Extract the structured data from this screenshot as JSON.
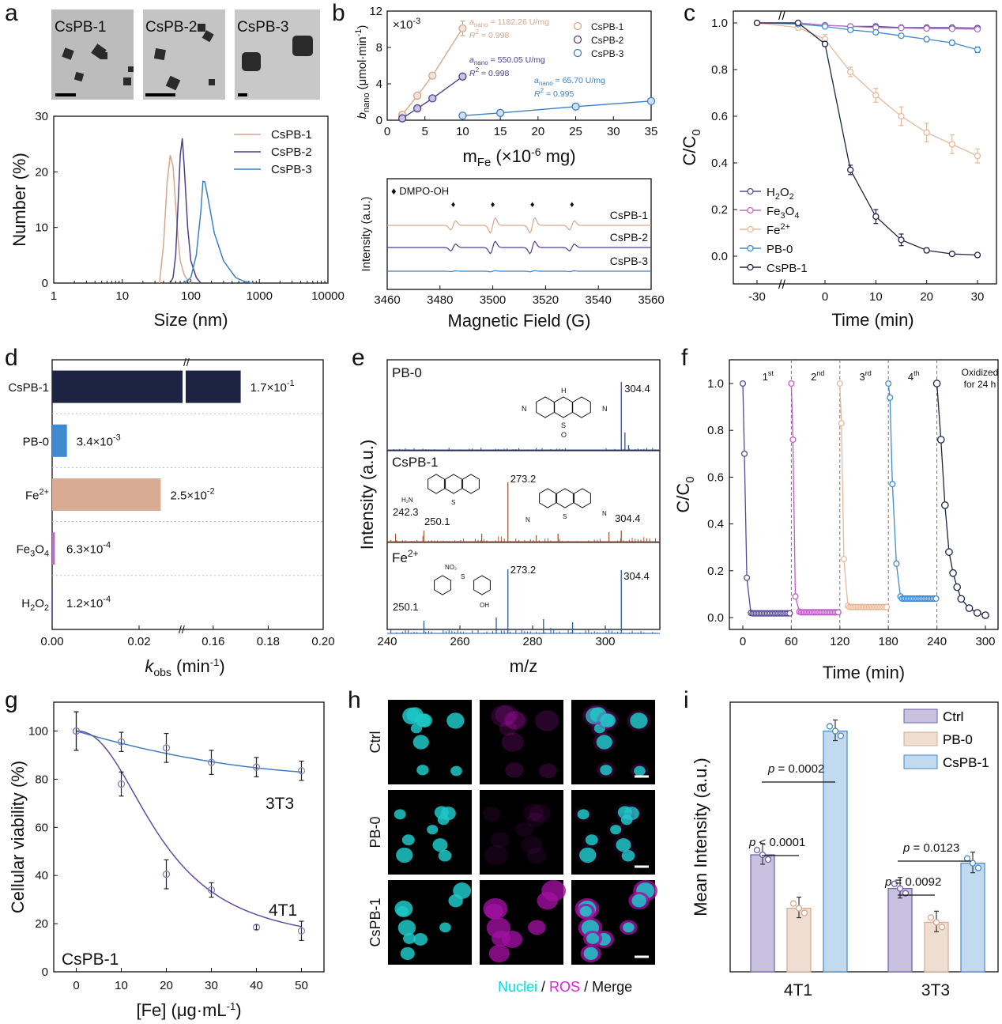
{
  "panels": {
    "a": "a",
    "b": "b",
    "c": "c",
    "d": "d",
    "e": "e",
    "f": "f",
    "g": "g",
    "h": "h",
    "i": "i"
  },
  "colors": {
    "cspb1": "#d7a68c",
    "cspb2": "#4c3f90",
    "cspb3": "#3c7fc2",
    "h2o2": "#54489a",
    "fe3o4": "#b86fc0",
    "fe2": "#e8b89a",
    "pb0": "#3f8ad0",
    "cspb1dark": "#1d2443",
    "magenta": "#e020e0",
    "cyan": "#00e0e0"
  },
  "chart_data": [
    {
      "id": "a-images",
      "type": "image-panel",
      "labels": [
        "CsPB-1",
        "CsPB-2",
        "CsPB-3"
      ]
    },
    {
      "id": "a",
      "type": "line",
      "title": "",
      "xlabel": "Size (nm)",
      "ylabel": "Number (%)",
      "xscale": "log",
      "xlim": [
        1,
        10000
      ],
      "ylim": [
        0,
        30
      ],
      "xticks": [
        1,
        10,
        100,
        1000,
        10000
      ],
      "xtick_labels": [
        "1",
        "10",
        "100",
        "1000",
        "10000"
      ],
      "yticks": [
        0,
        10,
        20,
        30
      ],
      "series": [
        {
          "name": "CsPB-1",
          "x": [
            35,
            40,
            45,
            50,
            55,
            60,
            65,
            70,
            80,
            90,
            100
          ],
          "y": [
            0,
            7,
            18,
            23,
            21,
            14,
            8,
            4,
            1.5,
            0.5,
            0
          ]
        },
        {
          "name": "CsPB-2",
          "x": [
            50,
            55,
            60,
            65,
            70,
            75,
            80,
            90,
            100,
            120,
            140
          ],
          "y": [
            0,
            1,
            5,
            14,
            23,
            26,
            21,
            10,
            4,
            1,
            0
          ]
        },
        {
          "name": "CsPB-3",
          "x": [
            80,
            100,
            120,
            140,
            150,
            160,
            180,
            220,
            300,
            450,
            600,
            800
          ],
          "y": [
            0,
            1,
            5,
            13,
            18.3,
            18.2,
            15,
            9,
            4,
            1,
            0.3,
            0
          ]
        }
      ]
    },
    {
      "id": "b-top",
      "type": "scatter",
      "xlabel_main": "m",
      "xlabel_sub": "Fe",
      "xlabel_tail": " (×10",
      "xlabel_sup": "-6",
      "xlabel_end": " mg)",
      "ylabel_main": "b",
      "ylabel_sub": "nano",
      "ylabel_tail": " (μmol·min",
      "ylabel_sup": "-1",
      "ylabel_end": ")",
      "multiplier": "×10",
      "multiplier_sup": "-3",
      "xlim": [
        0,
        35
      ],
      "ylim": [
        0,
        12
      ],
      "xticks": [
        0,
        5,
        10,
        15,
        20,
        25,
        30,
        35
      ],
      "yticks": [
        0,
        4,
        8,
        12
      ],
      "series": [
        {
          "name": "CsPB-1",
          "x": [
            2,
            4,
            6,
            10
          ],
          "y": [
            0.6,
            2.7,
            4.9,
            10.1
          ],
          "err": [
            0.2,
            0.3,
            0.3,
            0.8
          ],
          "fit_slope": "a_nano = 1182.26 U/mg",
          "fit_r2": "R² = 0.998"
        },
        {
          "name": "CsPB-2",
          "x": [
            2,
            4,
            6,
            10
          ],
          "y": [
            0.2,
            1.3,
            2.4,
            4.8
          ],
          "err": [
            0.1,
            0.1,
            0.1,
            0.2
          ],
          "fit_slope": "a_nano = 550.05 U/mg",
          "fit_r2": "R² = 0.998"
        },
        {
          "name": "CsPB-3",
          "x": [
            10,
            15,
            25,
            35
          ],
          "y": [
            0.5,
            0.8,
            1.5,
            2.1
          ],
          "err": [
            0.1,
            0.1,
            0.1,
            0.15
          ],
          "fit_slope": "a_nano = 65.70 U/mg",
          "fit_r2": "R² = 0.995"
        }
      ],
      "annotations": {
        "cspb1_a": "a",
        "cspb1_a_sub": "nano",
        "cspb1_a_val": " = 1182.26 U/mg",
        "cspb1_r": "R",
        "cspb1_r_val": " = 0.998",
        "cspb2_a_val": " = 550.05 U/mg",
        "cspb2_r_val": " = 0.998",
        "cspb3_a_val": " = 65.70 U/mg",
        "cspb3_r_val": " = 0.995",
        "r_sup": "2"
      }
    },
    {
      "id": "b-bottom",
      "type": "line",
      "xlabel": "Magnetic Field (G)",
      "ylabel": "Intensity (a.u.)",
      "xlim": [
        3460,
        3560
      ],
      "xticks": [
        3460,
        3480,
        3500,
        3520,
        3540,
        3560
      ],
      "legend": "DMPO-OH",
      "marker": "♦",
      "peaks": [
        3485,
        3500,
        3515,
        3530
      ],
      "series": [
        {
          "name": "CsPB-1",
          "amplitudes": [
            0.6,
            1.0,
            1.0,
            0.6
          ]
        },
        {
          "name": "CsPB-2",
          "amplitudes": [
            0.45,
            0.8,
            0.8,
            0.45
          ]
        },
        {
          "name": "CsPB-3",
          "amplitudes": [
            0.05,
            0.08,
            0.08,
            0.05
          ]
        }
      ]
    },
    {
      "id": "c",
      "type": "line",
      "xlabel": "Time (min)",
      "ylabel": "C/C",
      "ylabel_sub": "0",
      "xticks": [
        -30,
        0,
        10,
        20,
        30
      ],
      "yticks": [
        0.0,
        0.2,
        0.4,
        0.6,
        0.8,
        1.0
      ],
      "ylim": [
        0,
        1.0
      ],
      "x": [
        -30,
        -5,
        0,
        5,
        10,
        15,
        20,
        25,
        30
      ],
      "series": [
        {
          "name": "H2O2",
          "label": "H",
          "sub1": "2",
          "mid": "O",
          "sub2": "2",
          "y": [
            1.0,
            1.0,
            0.99,
            0.985,
            0.985,
            0.98,
            0.98,
            0.98,
            0.978
          ]
        },
        {
          "name": "Fe3O4",
          "label": "Fe",
          "sub1": "3",
          "mid": "O",
          "sub2": "4",
          "y": [
            1.0,
            1.0,
            0.99,
            0.985,
            0.98,
            0.978,
            0.976,
            0.975,
            0.973
          ]
        },
        {
          "name": "Fe2+",
          "label": "Fe",
          "sup": "2+",
          "y": [
            1.0,
            0.98,
            0.93,
            0.79,
            0.69,
            0.6,
            0.53,
            0.48,
            0.43
          ],
          "err": [
            0,
            0.01,
            0.02,
            0.02,
            0.03,
            0.04,
            0.04,
            0.04,
            0.03
          ]
        },
        {
          "name": "PB-0",
          "label": "PB-0",
          "y": [
            1.0,
            0.995,
            0.985,
            0.97,
            0.96,
            0.945,
            0.93,
            0.915,
            0.885
          ],
          "err": [
            0,
            0.005,
            0.005,
            0.008,
            0.008,
            0.008,
            0.008,
            0.01,
            0.012
          ]
        },
        {
          "name": "CsPB-1",
          "label": "CsPB-1",
          "y": [
            1.0,
            1.0,
            0.91,
            0.37,
            0.17,
            0.07,
            0.025,
            0.01,
            0.005
          ],
          "err": [
            0,
            0,
            0.01,
            0.02,
            0.03,
            0.025,
            0.01,
            0.005,
            0.003
          ]
        }
      ]
    },
    {
      "id": "d",
      "type": "bar",
      "orientation": "horizontal",
      "xlabel": "k",
      "xlabel_sub": "obs",
      "xlabel_tail": " (min",
      "xlabel_sup": "-1",
      "xlabel_end": ")",
      "xticks_left": [
        "0.00",
        "0.02"
      ],
      "xticks_right": [
        "0.16",
        "0.18",
        "0.20"
      ],
      "categories": [
        "CsPB-1",
        "PB-0",
        "Fe2+",
        "Fe3O4",
        "H2O2"
      ],
      "values": [
        0.17,
        0.0034,
        0.025,
        0.00063,
        0.00012
      ],
      "value_labels": [
        "1.7×10",
        "3.4×10",
        "2.5×10",
        "6.3×10",
        "1.2×10"
      ],
      "value_exps": [
        "-1",
        "-3",
        "-2",
        "-4",
        "-4"
      ],
      "cat_labels": {
        "c1": "CsPB-1",
        "c2": "PB-0",
        "c3_main": "Fe",
        "c3_sup": "2+",
        "c4_main": "Fe",
        "c4_sub1": "3",
        "c4_mid": "O",
        "c4_sub2": "4",
        "c5_main": "H",
        "c5_sub1": "2",
        "c5_mid": "O",
        "c5_sub2": "2"
      }
    },
    {
      "id": "e",
      "type": "bar",
      "subtype": "mass-spectrum",
      "xlabel": "m/z",
      "ylabel": "Intensity (a.u.)",
      "xlim": [
        240,
        315
      ],
      "xticks": [
        240,
        260,
        280,
        300
      ],
      "series": [
        {
          "name": "PB-0",
          "peaks_labels": [
            "304.4"
          ]
        },
        {
          "name": "CsPB-1",
          "peaks_labels": [
            "273.2",
            "242.3",
            "250.1",
            "304.4"
          ]
        },
        {
          "name": "Fe",
          "name_sup": "2+",
          "peaks_labels": [
            "273.2",
            "304.4",
            "250.1"
          ]
        }
      ],
      "struct_labels": {
        "nh": "H",
        "n": "N",
        "s": "S",
        "o": "O",
        "h2n": "H₂N",
        "no2": "NO₂",
        "oh": "OH"
      }
    },
    {
      "id": "f",
      "type": "line",
      "xlabel": "Time (min)",
      "ylabel": "C/C",
      "ylabel_sub": "0",
      "xlim": [
        0,
        300
      ],
      "ylim": [
        0,
        1.0
      ],
      "xticks": [
        0,
        60,
        120,
        180,
        240,
        300
      ],
      "yticks": [
        0.0,
        0.2,
        0.4,
        0.6,
        0.8,
        1.0
      ],
      "cycle_labels": [
        {
          "n": "1",
          "s": "st"
        },
        {
          "n": "2",
          "s": "nd"
        },
        {
          "n": "3",
          "s": "rd"
        },
        {
          "n": "4",
          "s": "th"
        }
      ],
      "note1": "Oxidized",
      "note2": "for 24 h",
      "cycles": [
        {
          "start": 0,
          "t": [
            0,
            2,
            5,
            10
          ],
          "y": [
            1.0,
            0.7,
            0.17,
            0.02
          ]
        },
        {
          "start": 60,
          "t": [
            0,
            2,
            5,
            10
          ],
          "y": [
            1.0,
            0.76,
            0.09,
            0.025
          ]
        },
        {
          "start": 120,
          "t": [
            0,
            2,
            5,
            10
          ],
          "y": [
            1.0,
            0.83,
            0.25,
            0.05
          ]
        },
        {
          "start": 180,
          "t": [
            0,
            2,
            5,
            10,
            15
          ],
          "y": [
            1.0,
            0.94,
            0.57,
            0.23,
            0.09
          ]
        },
        {
          "start": 240,
          "t": [
            0,
            5,
            10,
            15,
            20,
            25,
            30,
            40,
            50,
            60
          ],
          "y": [
            1.0,
            0.76,
            0.48,
            0.28,
            0.19,
            0.13,
            0.08,
            0.04,
            0.02,
            0.01
          ]
        }
      ]
    },
    {
      "id": "g",
      "type": "line",
      "xlabel": "[Fe] (μg·mL",
      "xlabel_sup": "-1",
      "xlabel_end": ")",
      "ylabel": "Cellular viability (%)",
      "xlim": [
        -5,
        55
      ],
      "ylim": [
        0,
        110
      ],
      "xticks": [
        0,
        10,
        20,
        30,
        40,
        50
      ],
      "yticks": [
        0,
        20,
        40,
        60,
        80,
        100
      ],
      "x": [
        0,
        10,
        20,
        30,
        40,
        50
      ],
      "series": [
        {
          "name": "3T3",
          "y": [
            100,
            95.5,
            93,
            87,
            85,
            83.5
          ],
          "err": [
            8,
            4,
            6,
            5,
            4,
            4
          ]
        },
        {
          "name": "4T1",
          "y": [
            100,
            78,
            40.5,
            34,
            18.5,
            17
          ],
          "err": [
            8,
            5,
            6,
            3,
            1,
            4
          ]
        }
      ],
      "label": "CsPB-1"
    },
    {
      "id": "h",
      "type": "image-grid",
      "rows": [
        "Ctrl",
        "PB-0",
        "CsPB-1"
      ],
      "footer_nuclei": "Nuclei",
      "footer_sep": " / ",
      "footer_ros": "ROS",
      "footer_merge": "Merge"
    },
    {
      "id": "i",
      "type": "bar",
      "ylabel": "Mean Intensity (a.u.)",
      "categories": [
        "4T1",
        "3T3"
      ],
      "series": [
        {
          "name": "Ctrl",
          "values": [
            0.36,
            0.24
          ]
        },
        {
          "name": "PB-0",
          "values": [
            0.17,
            0.12
          ]
        },
        {
          "name": "CsPB-1",
          "values": [
            0.8,
            0.33
          ]
        }
      ],
      "pvalues": [
        {
          "p_main": "p",
          "text": " < 0.0001"
        },
        {
          "p_main": "p",
          "text": " = 0.0002"
        },
        {
          "p_main": "p",
          "text": " = 0.0092"
        },
        {
          "p_main": "p",
          "text": " = 0.0123"
        }
      ]
    }
  ]
}
